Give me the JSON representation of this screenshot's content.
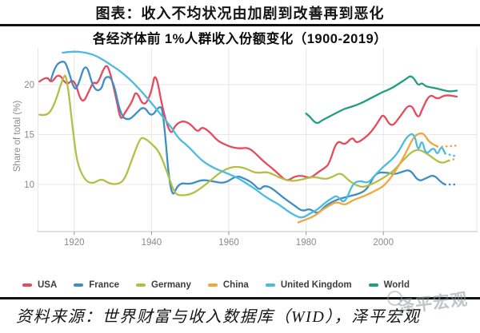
{
  "header": {
    "title": "图表：收入不均状况由加剧到改善再到恶化"
  },
  "chart_data": {
    "type": "line",
    "title": "各经济体前 1%人群收入份额变化（1900-2019）",
    "ylabel": "Share of total (%)",
    "x_ticks": [
      1920,
      1940,
      1960,
      1980,
      2000
    ],
    "y_ticks": [
      10,
      15,
      20
    ],
    "x_range": [
      1911,
      2024
    ],
    "y_range": [
      5.2,
      23.5
    ],
    "grid": true,
    "legend_position": "bottom",
    "series": [
      {
        "name": "USA",
        "color": "#e64a5d",
        "dotted_from": null,
        "points": [
          [
            1911,
            20.3
          ],
          [
            1913,
            20.9
          ],
          [
            1914,
            20.1
          ],
          [
            1916,
            21.2
          ],
          [
            1918,
            19.9
          ],
          [
            1920,
            20.7
          ],
          [
            1922,
            17.9
          ],
          [
            1924,
            19.5
          ],
          [
            1925,
            20.3
          ],
          [
            1926,
            20.0
          ],
          [
            1928,
            22.0
          ],
          [
            1929,
            21.7
          ],
          [
            1931,
            18.4
          ],
          [
            1932,
            16.4
          ],
          [
            1933,
            17.1
          ],
          [
            1935,
            18.3
          ],
          [
            1936,
            19.5
          ],
          [
            1938,
            17.7
          ],
          [
            1940,
            19.2
          ],
          [
            1941,
            21.5
          ],
          [
            1943,
            17.3
          ],
          [
            1945,
            14.9
          ],
          [
            1946,
            15.9
          ],
          [
            1948,
            16.4
          ],
          [
            1950,
            16.1
          ],
          [
            1952,
            15.2
          ],
          [
            1953,
            15.8
          ],
          [
            1955,
            15.3
          ],
          [
            1957,
            14.4
          ],
          [
            1959,
            14.0
          ],
          [
            1961,
            13.7
          ],
          [
            1963,
            13.6
          ],
          [
            1965,
            13.7
          ],
          [
            1967,
            13.1
          ],
          [
            1969,
            12.3
          ],
          [
            1971,
            11.7
          ],
          [
            1973,
            11.0
          ],
          [
            1975,
            10.3
          ],
          [
            1977,
            10.8
          ],
          [
            1979,
            10.9
          ],
          [
            1981,
            10.6
          ],
          [
            1983,
            11.2
          ],
          [
            1985,
            11.7
          ],
          [
            1986,
            12.1
          ],
          [
            1988,
            14.5
          ],
          [
            1990,
            13.9
          ],
          [
            1992,
            14.8
          ],
          [
            1993,
            14.1
          ],
          [
            1995,
            14.6
          ],
          [
            1997,
            15.3
          ],
          [
            1999,
            16.5
          ],
          [
            2000,
            17.1
          ],
          [
            2002,
            15.7
          ],
          [
            2004,
            16.6
          ],
          [
            2007,
            18.3
          ],
          [
            2009,
            16.5
          ],
          [
            2010,
            17.5
          ],
          [
            2012,
            19.1
          ],
          [
            2014,
            18.5
          ],
          [
            2016,
            19.0
          ],
          [
            2019,
            18.8
          ]
        ]
      },
      {
        "name": "France",
        "color": "#3e8ec4",
        "dotted_from": 2016,
        "points": [
          [
            1914,
            20.5
          ],
          [
            1915,
            21.9
          ],
          [
            1917,
            22.4
          ],
          [
            1918,
            22.1
          ],
          [
            1920,
            19.4
          ],
          [
            1921,
            19.9
          ],
          [
            1923,
            22.4
          ],
          [
            1925,
            19.5
          ],
          [
            1927,
            19.4
          ],
          [
            1928,
            20.9
          ],
          [
            1930,
            20.6
          ],
          [
            1932,
            16.9
          ],
          [
            1934,
            16.4
          ],
          [
            1936,
            17.1
          ],
          [
            1938,
            17.9
          ],
          [
            1940,
            16.7
          ],
          [
            1942,
            17.9
          ],
          [
            1943,
            17.5
          ],
          [
            1945,
            8.3
          ],
          [
            1947,
            10.2
          ],
          [
            1950,
            10.0
          ],
          [
            1953,
            10.5
          ],
          [
            1956,
            10.3
          ],
          [
            1959,
            10.1
          ],
          [
            1962,
            10.9
          ],
          [
            1964,
            10.6
          ],
          [
            1966,
            10.2
          ],
          [
            1968,
            9.4
          ],
          [
            1969,
            9.9
          ],
          [
            1971,
            9.7
          ],
          [
            1974,
            8.7
          ],
          [
            1977,
            7.9
          ],
          [
            1979,
            7.3
          ],
          [
            1981,
            7.6
          ],
          [
            1983,
            7.0
          ],
          [
            1985,
            7.9
          ],
          [
            1988,
            8.5
          ],
          [
            1991,
            8.8
          ],
          [
            1994,
            9.1
          ],
          [
            1996,
            9.6
          ],
          [
            1998,
            11.2
          ],
          [
            2001,
            11.2
          ],
          [
            2003,
            11.0
          ],
          [
            2005,
            11.3
          ],
          [
            2007,
            11.5
          ],
          [
            2009,
            10.3
          ],
          [
            2011,
            10.6
          ],
          [
            2013,
            11.0
          ],
          [
            2015,
            10.2
          ],
          [
            2016,
            10.0
          ],
          [
            2019,
            10.0
          ]
        ]
      },
      {
        "name": "Germany",
        "color": "#b3bf45",
        "dotted_from": 2017,
        "points": [
          [
            1911,
            17.0
          ],
          [
            1913,
            16.8
          ],
          [
            1915,
            18.1
          ],
          [
            1917,
            20.6
          ],
          [
            1918,
            21.2
          ],
          [
            1920,
            14.2
          ],
          [
            1921,
            11.8
          ],
          [
            1923,
            10.3
          ],
          [
            1925,
            10.1
          ],
          [
            1927,
            10.6
          ],
          [
            1929,
            10.1
          ],
          [
            1931,
            10.0
          ],
          [
            1933,
            10.4
          ],
          [
            1935,
            12.6
          ],
          [
            1937,
            14.6
          ],
          [
            1938,
            14.7
          ],
          [
            1940,
            14.1
          ],
          [
            1942,
            13.3
          ],
          [
            1944,
            11.3
          ],
          [
            1946,
            9.0
          ],
          [
            1948,
            8.9
          ],
          [
            1950,
            9.0
          ],
          [
            1952,
            9.4
          ],
          [
            1955,
            10.3
          ],
          [
            1958,
            11.3
          ],
          [
            1961,
            11.8
          ],
          [
            1964,
            11.7
          ],
          [
            1967,
            11.1
          ],
          [
            1970,
            11.3
          ],
          [
            1973,
            10.7
          ],
          [
            1976,
            10.3
          ],
          [
            1979,
            10.5
          ],
          [
            1982,
            10.8
          ],
          [
            1985,
            10.5
          ],
          [
            1987,
            10.8
          ],
          [
            1989,
            11.2
          ],
          [
            1991,
            10.4
          ],
          [
            1993,
            9.9
          ],
          [
            1995,
            9.7
          ],
          [
            1998,
            10.2
          ],
          [
            2001,
            10.9
          ],
          [
            2003,
            11.5
          ],
          [
            2005,
            12.4
          ],
          [
            2008,
            13.5
          ],
          [
            2010,
            13.4
          ],
          [
            2012,
            12.9
          ],
          [
            2013,
            12.6
          ],
          [
            2015,
            12.1
          ],
          [
            2017,
            12.4
          ],
          [
            2019,
            12.6
          ]
        ]
      },
      {
        "name": "China",
        "color": "#efa73e",
        "dotted_from": 2014,
        "points": [
          [
            1978,
            6.2
          ],
          [
            1980,
            6.5
          ],
          [
            1982,
            6.8
          ],
          [
            1984,
            7.4
          ],
          [
            1986,
            7.9
          ],
          [
            1988,
            8.3
          ],
          [
            1990,
            7.9
          ],
          [
            1992,
            8.4
          ],
          [
            1994,
            8.7
          ],
          [
            1996,
            9.0
          ],
          [
            1998,
            9.4
          ],
          [
            2000,
            9.8
          ],
          [
            2002,
            10.7
          ],
          [
            2004,
            11.9
          ],
          [
            2006,
            13.3
          ],
          [
            2008,
            14.9
          ],
          [
            2010,
            15.2
          ],
          [
            2011,
            14.8
          ],
          [
            2012,
            14.2
          ],
          [
            2014,
            13.8
          ],
          [
            2016,
            13.8
          ],
          [
            2019,
            13.9
          ]
        ]
      },
      {
        "name": "United Kingdom",
        "color": "#4bbcdf",
        "dotted_from": 2016,
        "points": [
          [
            1917,
            23.2
          ],
          [
            1919,
            23.3
          ],
          [
            1921,
            23.3
          ],
          [
            1923,
            23.2
          ],
          [
            1925,
            23.0
          ],
          [
            1927,
            22.6
          ],
          [
            1929,
            22.1
          ],
          [
            1931,
            21.6
          ],
          [
            1933,
            21.0
          ],
          [
            1935,
            20.3
          ],
          [
            1937,
            19.5
          ],
          [
            1939,
            18.6
          ],
          [
            1941,
            17.7
          ],
          [
            1943,
            16.7
          ],
          [
            1945,
            15.8
          ],
          [
            1947,
            14.6
          ],
          [
            1949,
            14.0
          ],
          [
            1951,
            13.2
          ],
          [
            1953,
            12.4
          ],
          [
            1955,
            11.9
          ],
          [
            1957,
            11.5
          ],
          [
            1959,
            11.2
          ],
          [
            1961,
            10.9
          ],
          [
            1963,
            10.5
          ],
          [
            1965,
            10.0
          ],
          [
            1967,
            9.5
          ],
          [
            1969,
            8.9
          ],
          [
            1971,
            8.4
          ],
          [
            1973,
            8.0
          ],
          [
            1975,
            7.4
          ],
          [
            1977,
            6.9
          ],
          [
            1979,
            6.6
          ],
          [
            1981,
            7.1
          ],
          [
            1983,
            7.5
          ],
          [
            1985,
            8.2
          ],
          [
            1987,
            8.7
          ],
          [
            1988,
            8.9
          ],
          [
            1990,
            8.0
          ],
          [
            1992,
            10.1
          ],
          [
            1994,
            10.4
          ],
          [
            1996,
            10.1
          ],
          [
            1998,
            11.0
          ],
          [
            2000,
            11.8
          ],
          [
            2002,
            12.4
          ],
          [
            2004,
            13.3
          ],
          [
            2006,
            14.8
          ],
          [
            2008,
            15.2
          ],
          [
            2009,
            13.2
          ],
          [
            2010,
            14.6
          ],
          [
            2011,
            12.9
          ],
          [
            2013,
            13.8
          ],
          [
            2014,
            12.9
          ],
          [
            2015,
            13.9
          ],
          [
            2016,
            13.1
          ],
          [
            2018,
            12.9
          ],
          [
            2019,
            12.8
          ]
        ]
      },
      {
        "name": "World",
        "color": "#1fa07b",
        "dotted_from": null,
        "points": [
          [
            1980,
            17.1
          ],
          [
            1981,
            16.8
          ],
          [
            1982,
            16.3
          ],
          [
            1983,
            16.1
          ],
          [
            1984,
            16.4
          ],
          [
            1986,
            16.8
          ],
          [
            1988,
            17.2
          ],
          [
            1990,
            17.6
          ],
          [
            1992,
            17.8
          ],
          [
            1994,
            18.1
          ],
          [
            1996,
            18.5
          ],
          [
            1998,
            18.9
          ],
          [
            2000,
            19.3
          ],
          [
            2002,
            19.6
          ],
          [
            2004,
            20.1
          ],
          [
            2006,
            20.6
          ],
          [
            2007,
            20.9
          ],
          [
            2008,
            20.6
          ],
          [
            2009,
            19.9
          ],
          [
            2010,
            20.2
          ],
          [
            2011,
            19.8
          ],
          [
            2013,
            19.7
          ],
          [
            2015,
            19.5
          ],
          [
            2017,
            19.3
          ],
          [
            2019,
            19.4
          ]
        ]
      }
    ]
  },
  "footer": {
    "source": "资料来源：世界财富与收入数据库（WID），泽平宏观",
    "watermark": "泽平宏观"
  }
}
